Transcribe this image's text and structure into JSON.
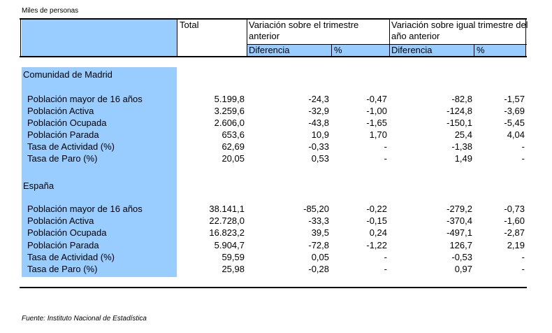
{
  "units_note": "Miles de personas",
  "headers": {
    "total": "Total",
    "var_prev_quarter": "Variación sobre el trimestre anterior",
    "var_prev_year": "Variación sobre igual trimestre del año anterior",
    "sub_diferencia": "Diferencia",
    "sub_pct": "%"
  },
  "sections": [
    {
      "title": "Comunidad de Madrid",
      "rows": [
        {
          "label": "Población mayor de 16 años",
          "total": "5.199,8",
          "vq_diff": "-24,3",
          "vq_pct": "-0,47",
          "vy_diff": "-82,8",
          "vy_pct": "-1,57"
        },
        {
          "label": "Población Activa",
          "total": "3.259,6",
          "vq_diff": "-32,9",
          "vq_pct": "-1,00",
          "vy_diff": "-124,8",
          "vy_pct": "-3,69"
        },
        {
          "label": "Población Ocupada",
          "total": "2.606,0",
          "vq_diff": "-43,8",
          "vq_pct": "-1,65",
          "vy_diff": "-150,1",
          "vy_pct": "-5,45"
        },
        {
          "label": "Población Parada",
          "total": "653,6",
          "vq_diff": "10,9",
          "vq_pct": "1,70",
          "vy_diff": "25,4",
          "vy_pct": "4,04"
        },
        {
          "label": "Tasa de Actividad (%)",
          "total": "62,69",
          "vq_diff": "-0,33",
          "vq_pct": "-",
          "vy_diff": "-1,38",
          "vy_pct": "-"
        },
        {
          "label": "Tasa de Paro (%)",
          "total": "20,05",
          "vq_diff": "0,53",
          "vq_pct": "-",
          "vy_diff": "1,49",
          "vy_pct": "-"
        }
      ]
    },
    {
      "title": "España",
      "rows": [
        {
          "label": "Población mayor de 16 años",
          "total": "38.141,1",
          "vq_diff": "-85,20",
          "vq_pct": "-0,22",
          "vy_diff": "-279,2",
          "vy_pct": "-0,73"
        },
        {
          "label": "Población Activa",
          "total": "22.728,0",
          "vq_diff": "-33,3",
          "vq_pct": "-0,15",
          "vy_diff": "-370,4",
          "vy_pct": "-1,60"
        },
        {
          "label": "Población Ocupada",
          "total": "16.823,2",
          "vq_diff": "39,5",
          "vq_pct": "0,24",
          "vy_diff": "-497,1",
          "vy_pct": "-2,87"
        },
        {
          "label": "Población Parada",
          "total": "5.904,7",
          "vq_diff": "-72,8",
          "vq_pct": "-1,22",
          "vy_diff": "126,7",
          "vy_pct": "2,19"
        },
        {
          "label": "Tasa de Actividad (%)",
          "total": "59,59",
          "vq_diff": "0,05",
          "vq_pct": "-",
          "vy_diff": "-0,53",
          "vy_pct": "-"
        },
        {
          "label": "Tasa de Paro (%)",
          "total": "25,98",
          "vq_diff": "-0,28",
          "vq_pct": "-",
          "vy_diff": "0,97",
          "vy_pct": "-"
        }
      ]
    }
  ],
  "source": "Fuente: Instituto Nacional de Estadística",
  "colors": {
    "label_fill": "#99ccff",
    "header_fill": "#99ccff"
  }
}
